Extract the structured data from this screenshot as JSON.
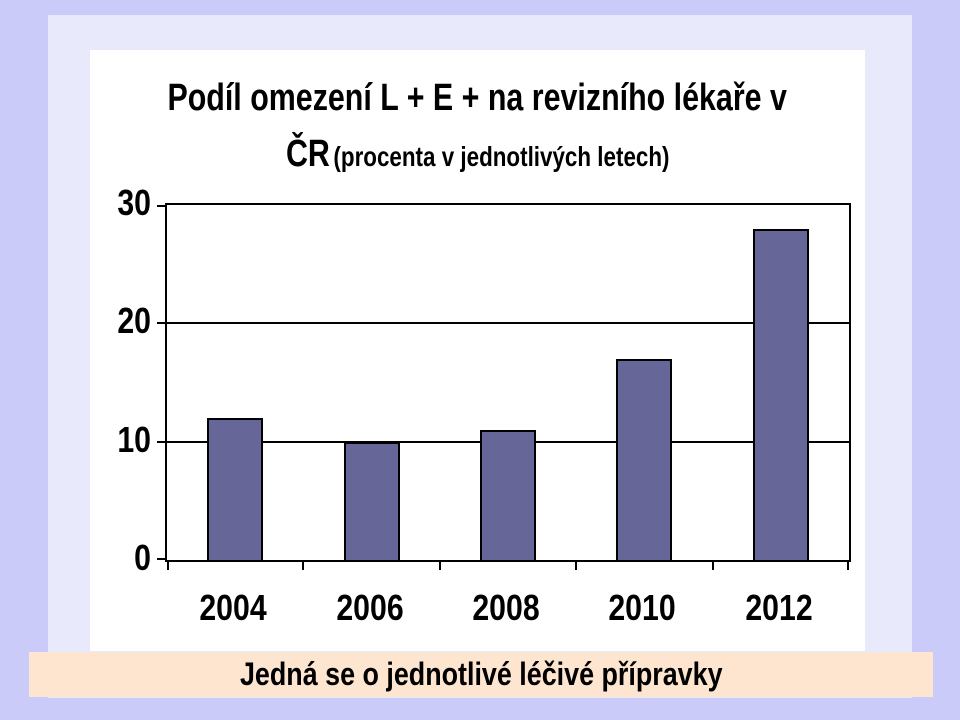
{
  "slide": {
    "caption": "Jedná se o jednotlivé léčivé přípravky"
  },
  "chart_data": {
    "type": "bar",
    "title": "Podíl omezení L + E + na revizního lékaře v ČR (procenta v jednotlivých letech)",
    "title_line1": "Podíl omezení L + E + na revizního lékaře v",
    "title_line2_big": "ČR",
    "title_line2_small": "(procenta v jednotlivých letech)",
    "categories": [
      "2004",
      "2006",
      "2008",
      "2010",
      "2012"
    ],
    "values": [
      12,
      10,
      11,
      17,
      28
    ],
    "series_name": "",
    "xlabel": "",
    "ylabel": "",
    "yticks": [
      0,
      10,
      20,
      30
    ],
    "ylim": [
      0,
      30
    ],
    "grid": true,
    "legend": false,
    "bar_color": "#666699",
    "bar_border_color": "#000000"
  },
  "colors": {
    "page_background": "#cbcbfa",
    "slide_frame": "#e9e9fc",
    "chart_background": "#ffffff",
    "caption_background": "#fde5d0",
    "axis_line": "#000000",
    "text": "#000000"
  }
}
